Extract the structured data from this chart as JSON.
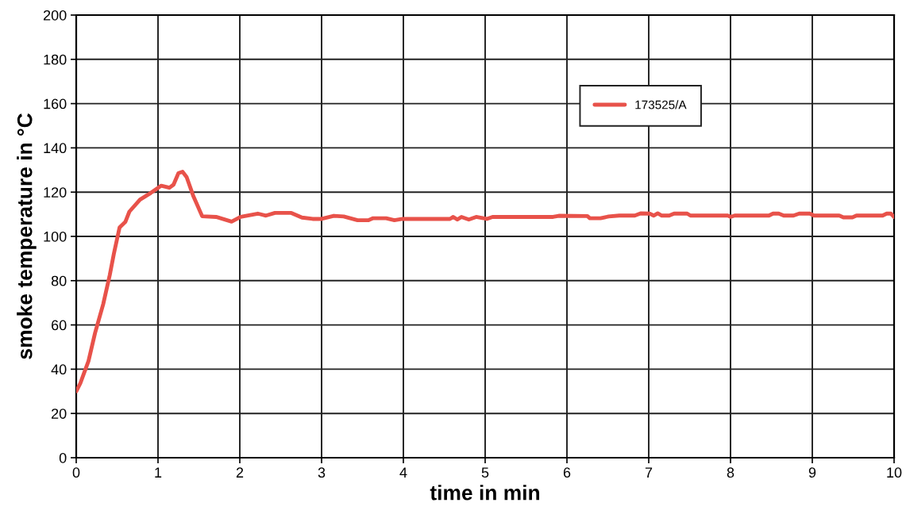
{
  "chart_data": {
    "type": "line",
    "xlabel": "time in min",
    "ylabel": "smoke temperature in °C",
    "xlim": [
      0,
      10
    ],
    "ylim": [
      0,
      200
    ],
    "xticks": [
      0,
      1,
      2,
      3,
      4,
      5,
      6,
      7,
      8,
      9,
      10
    ],
    "yticks": [
      0,
      20,
      40,
      60,
      80,
      100,
      120,
      140,
      160,
      180,
      200
    ],
    "grid": true,
    "legend": "top right",
    "marker": "none",
    "line_style": "solid",
    "series": [
      {
        "name": "173525/A",
        "color": "#e8524a",
        "x": [
          0,
          0.05,
          0.09,
          0.15,
          0.23,
          0.33,
          0.41,
          0.46,
          0.53,
          0.6,
          0.65,
          0.78,
          0.91,
          1.04,
          1.14,
          1.19,
          1.25,
          1.3,
          1.35,
          1.43,
          1.54,
          1.71,
          1.9,
          2.01,
          2.22,
          2.32,
          2.43,
          2.63,
          2.76,
          2.89,
          3.0,
          3.15,
          3.27,
          3.44,
          3.57,
          3.63,
          3.79,
          3.89,
          3.99,
          4.57,
          4.61,
          4.66,
          4.71,
          4.8,
          4.89,
          5.02,
          5.09,
          5.83,
          5.9,
          6.25,
          6.28,
          6.41,
          6.51,
          6.64,
          6.83,
          6.9,
          7.01,
          7.06,
          7.11,
          7.16,
          7.25,
          7.31,
          7.47,
          7.51,
          7.97,
          8.0,
          8.05,
          8.47,
          8.52,
          8.59,
          8.65,
          8.77,
          8.84,
          8.97,
          9.02,
          9.33,
          9.38,
          9.49,
          9.54,
          9.86,
          9.91,
          9.96,
          10.0
        ],
        "values": [
          30,
          33.6,
          37.7,
          43.7,
          56.3,
          69.4,
          82.5,
          92.1,
          104,
          106.5,
          111.2,
          116.6,
          119.6,
          122.9,
          122,
          123.4,
          128.6,
          129.2,
          126.8,
          118.4,
          109.1,
          108.8,
          106.7,
          108.8,
          110.3,
          109.4,
          110.6,
          110.6,
          108.5,
          107.9,
          107.9,
          109.3,
          109,
          107.3,
          107.3,
          108.2,
          108.2,
          107.3,
          107.9,
          107.9,
          108.8,
          107.6,
          108.8,
          107.6,
          108.8,
          107.9,
          108.8,
          108.8,
          109.3,
          109.2,
          108.2,
          108.2,
          109,
          109.4,
          109.4,
          110.4,
          110.3,
          109.4,
          110.4,
          109.4,
          109.4,
          110.3,
          110.3,
          109.4,
          109.4,
          108.8,
          109.4,
          109.4,
          110.3,
          110.3,
          109.4,
          109.4,
          110.3,
          110.3,
          109.4,
          109.4,
          108.6,
          108.6,
          109.4,
          109.4,
          110.3,
          110.3,
          108.8
        ]
      }
    ]
  }
}
